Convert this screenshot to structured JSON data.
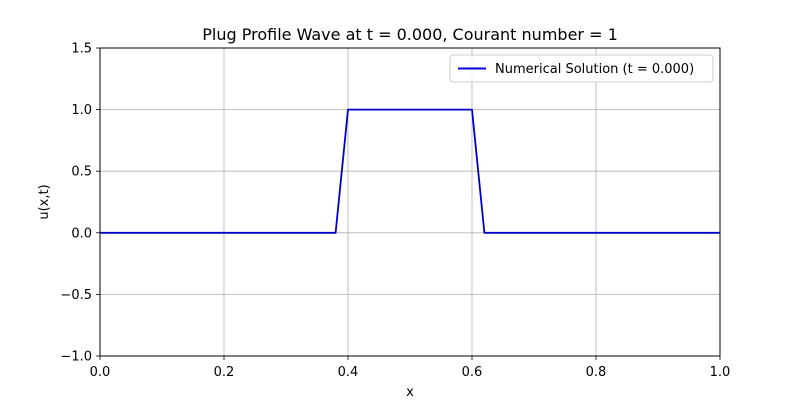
{
  "chart_data": {
    "type": "line",
    "title": "Plug Profile Wave at t = 0.000, Courant number = 1",
    "xlabel": "x",
    "ylabel": "u(x,t)",
    "xlim": [
      0.0,
      1.0
    ],
    "ylim": [
      -1.0,
      1.5
    ],
    "xticks": [
      0.0,
      0.2,
      0.4,
      0.6,
      0.8,
      1.0
    ],
    "xtick_labels": [
      "0.0",
      "0.2",
      "0.4",
      "0.6",
      "0.8",
      "1.0"
    ],
    "yticks": [
      -1.0,
      -0.5,
      0.0,
      0.5,
      1.0,
      1.5
    ],
    "ytick_labels": [
      "−1.0",
      "−0.5",
      "0.0",
      "0.5",
      "1.0",
      "1.5"
    ],
    "grid": true,
    "legend_position": "upper right",
    "series": [
      {
        "name": "Numerical Solution (t = 0.000)",
        "color": "#0000cc",
        "x": [
          0.0,
          0.38,
          0.4,
          0.6,
          0.62,
          1.0
        ],
        "y": [
          0.0,
          0.0,
          1.0,
          1.0,
          0.0,
          0.0
        ]
      }
    ]
  }
}
